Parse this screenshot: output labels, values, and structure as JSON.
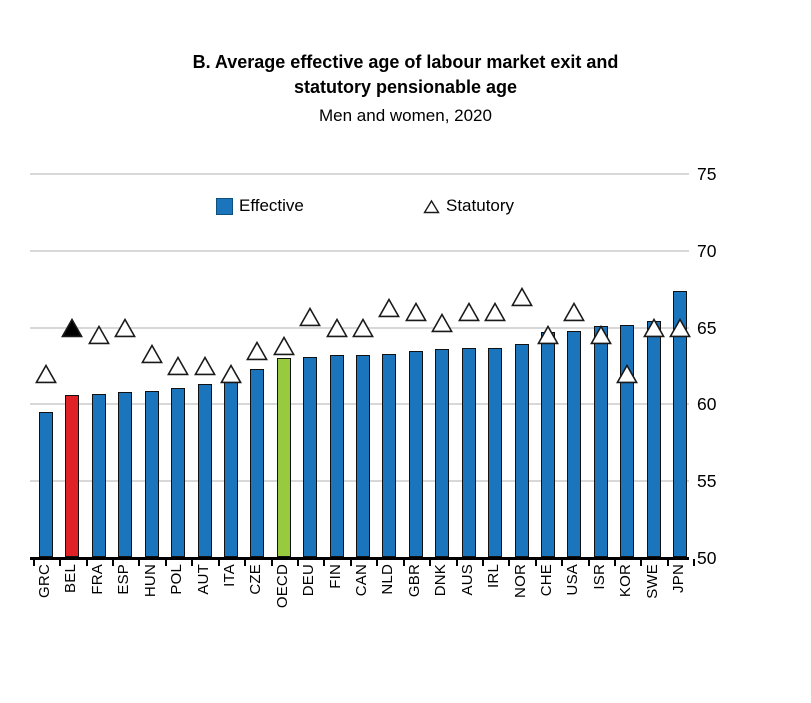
{
  "title": {
    "line1": "B. Average effective age of labour market exit and",
    "line2": "statutory pensionable age",
    "subtitle": "Men and women, 2020"
  },
  "legend": {
    "effective_label": "Effective",
    "statutory_label": "Statutory"
  },
  "colors": {
    "bar_blue": "#1B75BC",
    "bar_red": "#E02227",
    "bar_green": "#97CA3E",
    "marker_fill_white": "#ffffff",
    "marker_fill_black": "#000000",
    "gridline_gray": "#d8d8d8",
    "axis_black": "#000000"
  },
  "chart_data": {
    "type": "bar",
    "title": "B. Average effective age of labour market exit and statutory pensionable age",
    "subtitle": "Men and women, 2020",
    "categories": [
      "GRC",
      "BEL",
      "FRA",
      "ESP",
      "HUN",
      "POL",
      "AUT",
      "ITA",
      "CZE",
      "OECD",
      "DEU",
      "FIN",
      "CAN",
      "NLD",
      "GBR",
      "DNK",
      "AUS",
      "IRL",
      "NOR",
      "CHE",
      "USA",
      "ISR",
      "KOR",
      "SWE",
      "JPN"
    ],
    "series": [
      {
        "name": "Effective",
        "type": "bar",
        "values": [
          59.5,
          60.6,
          60.7,
          60.8,
          60.9,
          61.1,
          61.3,
          61.5,
          62.3,
          63.0,
          63.1,
          63.2,
          63.2,
          63.3,
          63.5,
          63.6,
          63.7,
          63.7,
          63.9,
          64.7,
          64.8,
          65.1,
          65.2,
          65.4,
          67.4
        ]
      },
      {
        "name": "Statutory",
        "type": "scatter",
        "marker": "triangle-up",
        "values": [
          62.0,
          65.0,
          64.5,
          65.0,
          63.3,
          62.5,
          62.5,
          62.0,
          63.5,
          63.8,
          65.7,
          65.0,
          65.0,
          66.3,
          66.0,
          65.3,
          66.0,
          66.0,
          67.0,
          64.5,
          66.0,
          64.5,
          62.0,
          65.0,
          65.0
        ]
      }
    ],
    "highlighted_bars": {
      "BEL": "#E02227",
      "OECD": "#97CA3E"
    },
    "highlighted_markers": {
      "BEL": "black-filled"
    },
    "ylim": [
      50,
      75
    ],
    "yticks": [
      50,
      55,
      60,
      65,
      70,
      75
    ],
    "grid": true,
    "legend_position": "top-inside",
    "xlabel": "",
    "ylabel": ""
  }
}
